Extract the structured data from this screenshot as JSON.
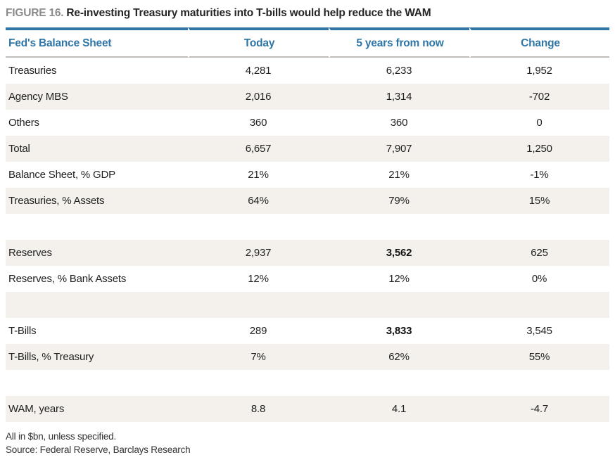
{
  "figure": {
    "label": "FIGURE 16.",
    "title": "Re-investing Treasury maturities into T-bills would help reduce the WAM"
  },
  "table": {
    "columns": [
      "Fed's Balance Sheet",
      "Today",
      "5 years from now",
      "Change"
    ],
    "rows": [
      {
        "cells": [
          "Treasuries",
          "4,281",
          "6,233",
          "1,952"
        ]
      },
      {
        "cells": [
          "Agency MBS",
          "2,016",
          "1,314",
          "-702"
        ]
      },
      {
        "cells": [
          "Others",
          "360",
          "360",
          "0"
        ]
      },
      {
        "cells": [
          "Total",
          "6,657",
          "7,907",
          "1,250"
        ]
      },
      {
        "cells": [
          "Balance Sheet, % GDP",
          "21%",
          "21%",
          "-1%"
        ]
      },
      {
        "cells": [
          "Treasuries, % Assets",
          "64%",
          "79%",
          "15%"
        ]
      },
      {
        "cells": [
          "",
          "",
          "",
          ""
        ]
      },
      {
        "cells": [
          "Reserves",
          "2,937",
          "3,562",
          "625"
        ],
        "bold_col": 2
      },
      {
        "cells": [
          "Reserves, % Bank Assets",
          "12%",
          "12%",
          "0%"
        ]
      },
      {
        "cells": [
          "",
          "",
          "",
          ""
        ]
      },
      {
        "cells": [
          "T-Bills",
          "289",
          "3,833",
          "3,545"
        ],
        "bold_col": 2
      },
      {
        "cells": [
          "T-Bills, % Treasury",
          "7%",
          "62%",
          "55%"
        ]
      },
      {
        "cells": [
          "",
          "",
          "",
          ""
        ]
      },
      {
        "cells": [
          "WAM, years",
          "8.8",
          "4.1",
          "-4.7"
        ]
      }
    ]
  },
  "footer": {
    "note": "All in $bn, unless specified.",
    "source": "Source: Federal Reserve, Barclays Research"
  },
  "colors": {
    "accent_blue": "#2f76a7",
    "stripe_beige": "#f4f1ec",
    "header_rule_gray": "#bfbcba"
  }
}
